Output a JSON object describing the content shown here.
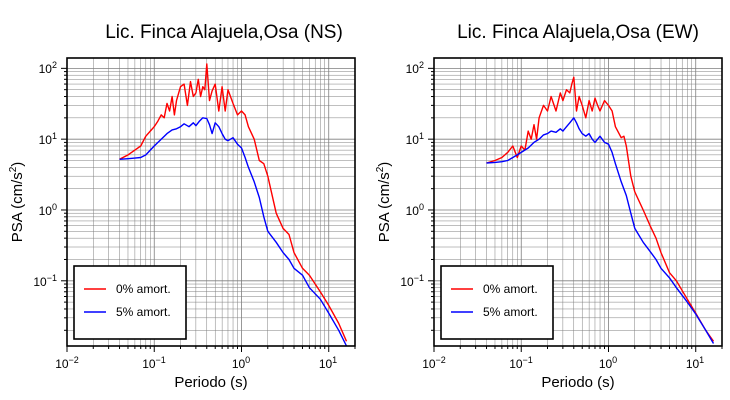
{
  "charts": [
    {
      "title": "Lic. Finca Alajuela,Osa (NS)",
      "xlabel": "Periodo (s)",
      "ylabel_main": "PSA (cm/s",
      "ylabel_sup": "2",
      "ylabel_end": ")"
    },
    {
      "title": "Lic. Finca Alajuela,Osa (EW)",
      "xlabel": "Periodo (s)",
      "ylabel_main": "PSA (cm/s",
      "ylabel_sup": "2",
      "ylabel_end": ")"
    }
  ],
  "x_ticks": [
    {
      "base": "10",
      "exp": "−2"
    },
    {
      "base": "10",
      "exp": "−1"
    },
    {
      "base": "10",
      "exp": "0"
    },
    {
      "base": "10",
      "exp": "1"
    }
  ],
  "y_ticks": [
    {
      "base": "10",
      "exp": "−1"
    },
    {
      "base": "10",
      "exp": "0"
    },
    {
      "base": "10",
      "exp": "1"
    },
    {
      "base": "10",
      "exp": "2"
    }
  ],
  "colors": {
    "series_0": "#ff0000",
    "series_5": "#0000ff",
    "grid": "#7f7f7f",
    "frame": "#000000"
  },
  "chart_data": [
    {
      "type": "line",
      "title": "Lic. Finca Alajuela,Osa (NS)",
      "xlabel": "Periodo (s)",
      "ylabel": "PSA (cm/s2)",
      "xscale": "log",
      "yscale": "log",
      "xlim": [
        0.01,
        20
      ],
      "ylim": [
        0.012,
        140
      ],
      "grid": true,
      "legend_position": "bottom-left",
      "series": [
        {
          "name": "0% amort.",
          "color": "#ff0000",
          "x": [
            0.04,
            0.05,
            0.06,
            0.07,
            0.08,
            0.09,
            0.1,
            0.11,
            0.12,
            0.13,
            0.14,
            0.15,
            0.16,
            0.17,
            0.18,
            0.2,
            0.22,
            0.24,
            0.26,
            0.28,
            0.3,
            0.32,
            0.34,
            0.36,
            0.38,
            0.4,
            0.43,
            0.46,
            0.5,
            0.55,
            0.6,
            0.65,
            0.7,
            0.8,
            0.9,
            1.0,
            1.1,
            1.2,
            1.4,
            1.6,
            1.8,
            2.0,
            2.5,
            3.0,
            3.5,
            4.0,
            5.0,
            6.0,
            8.0,
            10.0,
            13.0,
            16.0
          ],
          "values": [
            5.2,
            6.0,
            7.0,
            8.0,
            11.0,
            13.0,
            15.0,
            18.0,
            22.0,
            20.0,
            32.0,
            25.0,
            40.0,
            22.0,
            35.0,
            55.0,
            60.0,
            30.0,
            65.0,
            40.0,
            45.0,
            70.0,
            40.0,
            55.0,
            50.0,
            115.0,
            35.0,
            48.0,
            60.0,
            25.0,
            55.0,
            25.0,
            50.0,
            32.0,
            22.0,
            25.0,
            22.0,
            15.0,
            10.0,
            5.0,
            4.5,
            3.0,
            0.9,
            0.55,
            0.45,
            0.25,
            0.15,
            0.12,
            0.07,
            0.045,
            0.025,
            0.014
          ]
        },
        {
          "name": "5% amort.",
          "color": "#0000ff",
          "x": [
            0.04,
            0.05,
            0.06,
            0.07,
            0.08,
            0.09,
            0.1,
            0.12,
            0.14,
            0.16,
            0.18,
            0.2,
            0.22,
            0.25,
            0.28,
            0.3,
            0.33,
            0.36,
            0.4,
            0.43,
            0.46,
            0.5,
            0.55,
            0.6,
            0.65,
            0.7,
            0.8,
            0.9,
            1.0,
            1.1,
            1.2,
            1.4,
            1.6,
            1.8,
            2.0,
            2.5,
            3.0,
            3.5,
            4.0,
            5.0,
            6.0,
            8.0,
            10.0,
            13.0,
            16.0
          ],
          "values": [
            5.2,
            5.3,
            5.4,
            5.5,
            6.0,
            7.0,
            8.0,
            10.0,
            12.0,
            13.5,
            14.0,
            15.0,
            16.5,
            15.0,
            17.0,
            15.5,
            18.0,
            20.0,
            19.5,
            16.0,
            12.0,
            17.0,
            15.0,
            12.0,
            10.0,
            9.5,
            10.5,
            8.5,
            7.5,
            5.5,
            4.0,
            2.5,
            1.5,
            0.8,
            0.5,
            0.35,
            0.25,
            0.2,
            0.15,
            0.12,
            0.08,
            0.055,
            0.035,
            0.02,
            0.012
          ]
        }
      ]
    },
    {
      "type": "line",
      "title": "Lic. Finca Alajuela,Osa (EW)",
      "xlabel": "Periodo (s)",
      "ylabel": "PSA (cm/s2)",
      "xscale": "log",
      "yscale": "log",
      "xlim": [
        0.01,
        20
      ],
      "ylim": [
        0.012,
        140
      ],
      "grid": true,
      "legend_position": "bottom-left",
      "series": [
        {
          "name": "0% amort.",
          "color": "#ff0000",
          "x": [
            0.04,
            0.05,
            0.06,
            0.07,
            0.08,
            0.09,
            0.1,
            0.11,
            0.12,
            0.13,
            0.14,
            0.15,
            0.16,
            0.18,
            0.2,
            0.22,
            0.25,
            0.28,
            0.3,
            0.33,
            0.36,
            0.38,
            0.4,
            0.43,
            0.46,
            0.5,
            0.55,
            0.6,
            0.65,
            0.7,
            0.75,
            0.8,
            0.9,
            1.0,
            1.1,
            1.2,
            1.4,
            1.5,
            1.6,
            1.8,
            2.0,
            2.5,
            3.0,
            3.5,
            4.0,
            5.0,
            6.0,
            8.0,
            10.0,
            13.0,
            16.0
          ],
          "values": [
            4.6,
            5.0,
            5.5,
            6.5,
            8.0,
            5.5,
            8.0,
            7.0,
            13.0,
            10.0,
            16.0,
            10.0,
            20.0,
            30.0,
            25.0,
            40.0,
            25.0,
            45.0,
            35.0,
            50.0,
            45.0,
            60.0,
            75.0,
            25.0,
            40.0,
            30.0,
            20.0,
            35.0,
            25.0,
            38.0,
            30.0,
            25.0,
            35.0,
            30.0,
            25.0,
            15.0,
            10.5,
            11.0,
            8.0,
            3.0,
            1.8,
            1.0,
            0.6,
            0.4,
            0.25,
            0.13,
            0.1,
            0.055,
            0.035,
            0.02,
            0.014
          ]
        },
        {
          "name": "5% amort.",
          "color": "#0000ff",
          "x": [
            0.04,
            0.05,
            0.06,
            0.07,
            0.08,
            0.09,
            0.1,
            0.12,
            0.14,
            0.16,
            0.18,
            0.2,
            0.22,
            0.25,
            0.28,
            0.3,
            0.33,
            0.36,
            0.4,
            0.43,
            0.46,
            0.5,
            0.55,
            0.6,
            0.65,
            0.7,
            0.8,
            0.9,
            1.0,
            1.1,
            1.2,
            1.4,
            1.6,
            1.8,
            2.0,
            2.5,
            3.0,
            3.5,
            4.0,
            5.0,
            6.0,
            8.0,
            10.0,
            13.0,
            16.0
          ],
          "values": [
            4.6,
            4.7,
            4.8,
            5.0,
            5.5,
            6.0,
            6.5,
            7.5,
            9.0,
            10.0,
            11.5,
            12.0,
            13.0,
            12.5,
            14.0,
            13.0,
            15.0,
            17.0,
            20.0,
            17.0,
            14.0,
            12.0,
            11.0,
            12.0,
            10.0,
            9.0,
            11.0,
            9.0,
            8.5,
            6.5,
            4.5,
            2.5,
            1.6,
            0.9,
            0.55,
            0.35,
            0.26,
            0.2,
            0.15,
            0.11,
            0.08,
            0.05,
            0.034,
            0.02,
            0.013
          ]
        }
      ]
    }
  ]
}
